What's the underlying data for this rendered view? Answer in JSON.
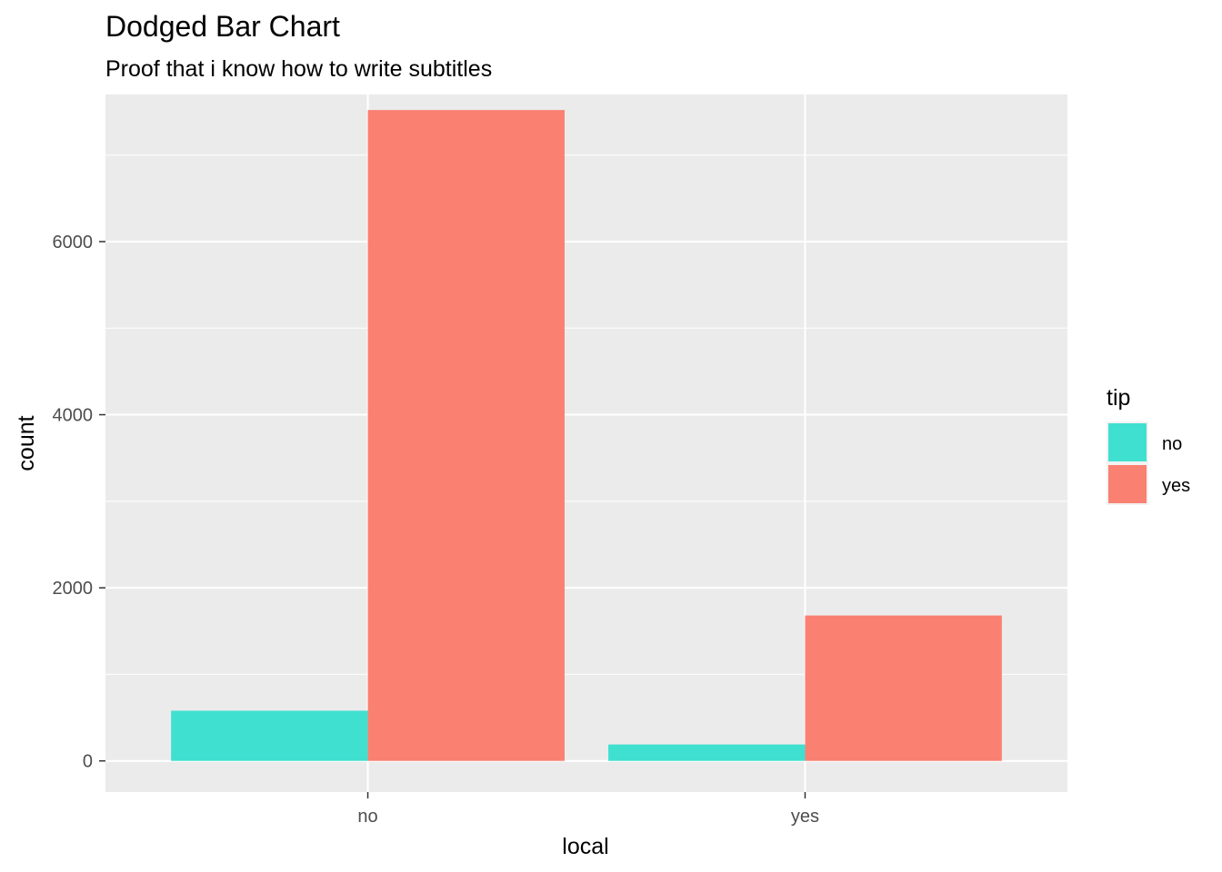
{
  "chart_data": {
    "type": "bar",
    "title": "Dodged Bar Chart",
    "subtitle": "Proof that i know how to write subtitles",
    "xlabel": "local",
    "ylabel": "count",
    "categories": [
      "no",
      "yes"
    ],
    "series": [
      {
        "name": "no",
        "color": "#40E0D0",
        "values": [
          580,
          190
        ]
      },
      {
        "name": "yes",
        "color": "#FA8072",
        "values": [
          7520,
          1680
        ]
      }
    ],
    "ylim": [
      -360,
      7700
    ],
    "yticks": [
      0,
      2000,
      4000,
      6000
    ],
    "ytick_labels": [
      "0",
      "2000",
      "4000",
      "6000"
    ],
    "grid": true,
    "panel_background": "#EBEBEB",
    "legend": {
      "title": "tip",
      "position": "right"
    }
  }
}
